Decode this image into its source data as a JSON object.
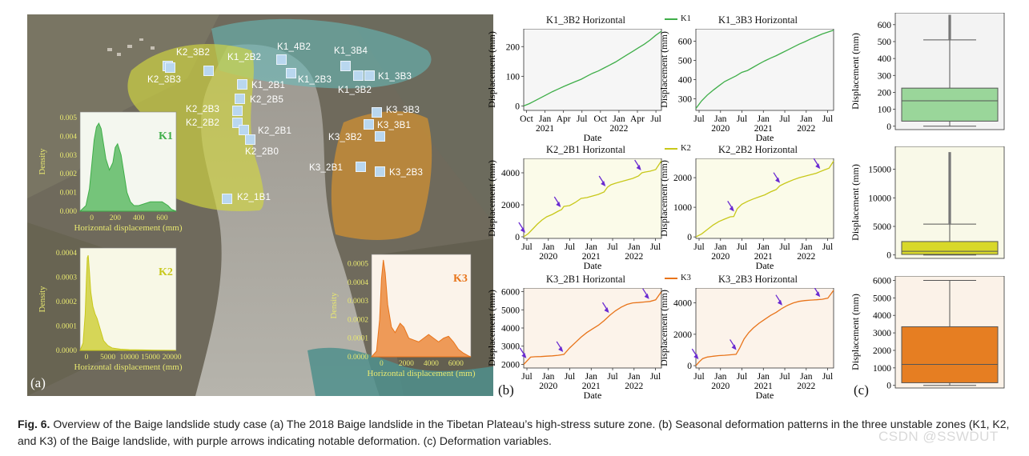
{
  "caption": {
    "label": "Fig. 6.",
    "text": " Overview of the Baige landslide study case (a) The 2018 Baige landslide in the Tibetan Plateau’s high-stress suture zone. (b) Seasonal deformation patterns in the three unstable zones (K1, K2, and K3) of the Baige landslide, with purple arrows indicating notable deformation. (c) Deformation variables."
  },
  "watermark": "CSDN @SSWDUT",
  "panel_tags": {
    "a": "(a)",
    "b": "(b)",
    "c": "(c)"
  },
  "colors": {
    "K1": "#3fae49",
    "K2": "#c8c81a",
    "K3": "#e8741a",
    "arrow": "#6a2bd1",
    "K1_zone": "#c9d542",
    "K2_zone": "#c9d542",
    "K3_zone": "#e0932a",
    "K1top_zone": "#66c0c0"
  },
  "map": {
    "zone_labels": {
      "K1": "K1",
      "K2": "K2",
      "K3": "K3"
    },
    "sites": [
      "K2_3B2",
      "K2_3B3",
      "K1_2B2",
      "K1_4B2",
      "K1_3B4",
      "K1_2B1",
      "K1_2B3",
      "K1_3B3",
      "K1_3B2",
      "K2_2B5",
      "K2_2B3",
      "K2_2B2",
      "K2_2B1",
      "K2_2B0",
      "K2_1B1",
      "K3_3B3",
      "K3_3B1",
      "K3_3B2",
      "K3_2B1",
      "K3_2B3"
    ]
  },
  "chart_data": [
    {
      "type": "area",
      "id": "density_K1",
      "ylabel": "Density",
      "xlabel": "Horizontal displacement (mm)",
      "xticks": [
        "0",
        "200",
        "400",
        "600"
      ],
      "yticks": [
        "0.000",
        "0.001",
        "0.002",
        "0.003",
        "0.004",
        "0.005"
      ],
      "xlim": [
        -100,
        720
      ],
      "ylim": [
        0,
        0.0053
      ],
      "x": [
        -100,
        -50,
        -20,
        0,
        20,
        40,
        60,
        80,
        100,
        120,
        150,
        180,
        200,
        220,
        250,
        280,
        300,
        330,
        360,
        400,
        450,
        500,
        550,
        600,
        650,
        680,
        720
      ],
      "y": [
        0,
        0.0003,
        0.0012,
        0.0025,
        0.0038,
        0.0045,
        0.0047,
        0.0044,
        0.0036,
        0.0028,
        0.0022,
        0.0026,
        0.0034,
        0.0036,
        0.003,
        0.0018,
        0.001,
        0.0005,
        0.0003,
        0.0003,
        0.0004,
        0.0005,
        0.0005,
        0.0005,
        0.0003,
        0.0001,
        0
      ]
    },
    {
      "type": "area",
      "id": "density_K2",
      "ylabel": "Density",
      "xlabel": "Horizontal displacement (mm)",
      "xticks": [
        "0",
        "5000",
        "10000",
        "15000",
        "20000"
      ],
      "yticks": [
        "0.0000",
        "0.0001",
        "0.0002",
        "0.0003",
        "0.0004"
      ],
      "xlim": [
        -1500,
        21000
      ],
      "ylim": [
        0,
        0.00042
      ],
      "x": [
        -1500,
        -800,
        -300,
        0,
        200,
        400,
        700,
        1000,
        1500,
        2000,
        2500,
        3000,
        3500,
        4000,
        5000,
        6000,
        8000,
        10000,
        13000,
        16000,
        19000,
        21000
      ],
      "y": [
        0,
        3e-05,
        0.00015,
        0.0003,
        0.00038,
        0.00039,
        0.00032,
        0.00024,
        0.00018,
        0.00015,
        0.00013,
        0.0001,
        7e-05,
        4e-05,
        2e-05,
        1e-05,
        5e-06,
        3e-06,
        2e-06,
        1e-06,
        5e-07,
        0
      ]
    },
    {
      "type": "area",
      "id": "density_K3",
      "ylabel": "Density",
      "xlabel": "Horizontal displacement (mm)",
      "xticks": [
        "0",
        "2000",
        "4000",
        "6000"
      ],
      "yticks": [
        "0.0000",
        "0.0001",
        "0.0002",
        "0.0003",
        "0.0004",
        "0.0005"
      ],
      "xlim": [
        -800,
        7200
      ],
      "ylim": [
        0,
        0.00055
      ],
      "x": [
        -800,
        -400,
        -150,
        0,
        150,
        300,
        500,
        800,
        1100,
        1500,
        1800,
        2200,
        2600,
        3000,
        3400,
        3800,
        4200,
        4600,
        5000,
        5400,
        5800,
        6200,
        6600,
        7000,
        7200
      ],
      "y": [
        0,
        3e-05,
        0.0002,
        0.00042,
        0.00052,
        0.00045,
        0.00028,
        0.00016,
        0.00013,
        0.00018,
        0.00016,
        0.0001,
        9e-05,
        8e-05,
        0.0001,
        0.00012,
        0.0001,
        8e-05,
        0.0001,
        0.00011,
        8e-05,
        4e-05,
        2e-05,
        5e-06,
        0
      ]
    },
    {
      "type": "line",
      "id": "K1_3B2",
      "title": "K1_3B2 Horizontal",
      "ylabel": "Displacement (mm)",
      "xlabel": "Date",
      "legend": "K1",
      "xtick_labels": [
        [
          "Oct",
          "2021"
        ],
        [
          "Jan",
          ""
        ],
        [
          "Apr",
          ""
        ],
        [
          "Jul",
          ""
        ],
        [
          "Oct",
          "2022"
        ],
        [
          "Jan",
          ""
        ],
        [
          "Apr",
          ""
        ],
        [
          "Jul",
          ""
        ]
      ],
      "xtick_top": [
        "Oct",
        "Jan",
        "Apr",
        "Jul",
        "Oct",
        "Jan",
        "Apr",
        "Jul"
      ],
      "xtick_bottom": [
        "",
        "2021",
        "",
        "",
        "",
        "2022",
        "",
        ""
      ],
      "yticks": [
        "0",
        "100",
        "200"
      ],
      "xlim": [
        0,
        12
      ],
      "ylim": [
        -15,
        260
      ],
      "x": [
        0,
        0.5,
        1,
        1.5,
        2,
        2.5,
        3,
        3.5,
        4,
        4.5,
        5,
        5.5,
        6,
        6.5,
        7,
        7.5,
        8,
        8.5,
        9,
        9.5,
        10,
        10.5,
        11,
        11.5,
        12
      ],
      "y": [
        0,
        8,
        18,
        28,
        38,
        48,
        57,
        66,
        74,
        82,
        90,
        100,
        110,
        118,
        128,
        138,
        148,
        160,
        172,
        184,
        196,
        208,
        222,
        238,
        252
      ],
      "arrows_at": []
    },
    {
      "type": "line",
      "id": "K1_3B3",
      "title": "K1_3B3 Horizontal",
      "ylabel": "Displacement (mm)",
      "xlabel": "Date",
      "legend": "K1",
      "xtick_top": [
        "Jul",
        "Jan",
        "Jul",
        "Jan",
        "Jul",
        "Jan",
        "Jul"
      ],
      "xtick_bottom": [
        "",
        "2020",
        "",
        "2021",
        "",
        "2022",
        ""
      ],
      "yticks": [
        "300",
        "400",
        "500",
        "600"
      ],
      "xlim": [
        0,
        12
      ],
      "ylim": [
        240,
        665
      ],
      "x": [
        0,
        0.5,
        1,
        1.5,
        2,
        2.5,
        3,
        3.5,
        4,
        4.5,
        5,
        5.5,
        6,
        6.5,
        7,
        7.5,
        8,
        8.5,
        9,
        9.5,
        10,
        10.5,
        11,
        11.5,
        12
      ],
      "y": [
        250,
        290,
        320,
        345,
        368,
        390,
        405,
        420,
        438,
        448,
        465,
        482,
        498,
        512,
        525,
        540,
        555,
        570,
        585,
        598,
        612,
        625,
        638,
        648,
        658
      ],
      "arrows_at": []
    },
    {
      "type": "line",
      "id": "K2_2B1",
      "title": "K2_2B1 Horizontal",
      "ylabel": "Displacement (mm)",
      "xlabel": "Date",
      "legend": "K2",
      "xtick_top": [
        "Jul",
        "Jan",
        "Jul",
        "Jan",
        "Jul",
        "Jan",
        "Jul"
      ],
      "xtick_bottom": [
        "",
        "2020",
        "",
        "2021",
        "",
        "2022",
        ""
      ],
      "yticks": [
        "0",
        "2000",
        "4000"
      ],
      "xlim": [
        0,
        12
      ],
      "ylim": [
        -100,
        4900
      ],
      "x": [
        0,
        0.4,
        0.8,
        1.2,
        1.6,
        2,
        2.5,
        3,
        3.3,
        3.5,
        4,
        4.5,
        5,
        5.5,
        6,
        6.5,
        7,
        7.3,
        7.6,
        8,
        8.5,
        9,
        9.5,
        10,
        10.3,
        10.6,
        11,
        11.5,
        12
      ],
      "y": [
        0,
        200,
        500,
        800,
        1050,
        1250,
        1400,
        1600,
        1700,
        1900,
        1950,
        2150,
        2400,
        2450,
        2550,
        2650,
        2800,
        3100,
        3250,
        3350,
        3450,
        3550,
        3650,
        3800,
        4000,
        4050,
        4100,
        4200,
        4750
      ],
      "arrows_at": [
        0.2,
        3.3,
        7.2,
        10.3
      ]
    },
    {
      "type": "line",
      "id": "K2_2B2",
      "title": "K2_2B2 Horizontal",
      "ylabel": "Displacement (mm)",
      "xlabel": "Date",
      "legend": "K2",
      "xtick_top": [
        "Jul",
        "Jan",
        "Jul",
        "Jan",
        "Jul",
        "Jan",
        "Jul"
      ],
      "xtick_bottom": [
        "",
        "2020",
        "",
        "2021",
        "",
        "2022",
        ""
      ],
      "yticks": [
        "0",
        "1000",
        "2000"
      ],
      "xlim": [
        0,
        12
      ],
      "ylim": [
        -50,
        2650
      ],
      "x": [
        0,
        0.5,
        1,
        1.5,
        2,
        2.5,
        3,
        3.3,
        3.6,
        4,
        4.5,
        5,
        5.5,
        6,
        6.5,
        7,
        7.3,
        7.7,
        8,
        8.5,
        9,
        9.5,
        10,
        10.5,
        10.8,
        11.2,
        11.6,
        12
      ],
      "y": [
        0,
        100,
        250,
        400,
        520,
        600,
        680,
        690,
        950,
        1100,
        1200,
        1280,
        1350,
        1420,
        1520,
        1600,
        1720,
        1800,
        1850,
        1930,
        2000,
        2050,
        2100,
        2150,
        2200,
        2260,
        2320,
        2560
      ],
      "arrows_at": [
        3.4,
        7.4,
        10.9
      ]
    },
    {
      "type": "line",
      "id": "K3_2B1",
      "title": "K3_2B1 Horizontal",
      "ylabel": "Displacement (mm)",
      "xlabel": "Date",
      "legend": "K3",
      "xtick_top": [
        "Jul",
        "Jan",
        "Jul",
        "Jan",
        "Jul",
        "Jan",
        "Jul"
      ],
      "xtick_bottom": [
        "",
        "2020",
        "",
        "2021",
        "",
        "2022",
        ""
      ],
      "yticks": [
        "2000",
        "3000",
        "4000",
        "5000",
        "6000"
      ],
      "xlim": [
        0,
        12
      ],
      "ylim": [
        1800,
        6200
      ],
      "x": [
        0,
        0.3,
        0.6,
        1,
        1.5,
        2,
        2.5,
        3,
        3.5,
        4,
        4.5,
        5,
        5.5,
        6,
        6.5,
        7,
        7.5,
        8,
        8.5,
        9,
        9.5,
        10,
        10.5,
        11,
        11.5,
        12
      ],
      "y": [
        2000,
        2200,
        2400,
        2420,
        2430,
        2450,
        2470,
        2500,
        2550,
        2900,
        3200,
        3500,
        3750,
        3950,
        4150,
        4400,
        4700,
        4950,
        5150,
        5300,
        5380,
        5400,
        5430,
        5460,
        5550,
        6000
      ],
      "arrows_at": [
        0.3,
        3.5,
        7.5,
        11.0
      ]
    },
    {
      "type": "line",
      "id": "K3_2B3",
      "title": "K3_2B3 Horizontal",
      "ylabel": "Displacement (mm)",
      "xlabel": "Date",
      "legend": "K3",
      "xtick_top": [
        "Jul",
        "Jan",
        "Jul",
        "Jan",
        "Jul",
        "Jan",
        "Jul"
      ],
      "xtick_bottom": [
        "",
        "2020",
        "",
        "2021",
        "",
        "2022",
        ""
      ],
      "yticks": [
        "0",
        "2000",
        "4000"
      ],
      "xlim": [
        0,
        12
      ],
      "ylim": [
        -150,
        4950
      ],
      "x": [
        0,
        0.3,
        0.6,
        1,
        1.5,
        2,
        2.5,
        3,
        3.5,
        3.8,
        4.2,
        4.6,
        5,
        5.5,
        6,
        6.5,
        7,
        7.5,
        8,
        8.5,
        9,
        9.5,
        10,
        10.5,
        11,
        11.5,
        12
      ],
      "y": [
        0,
        250,
        450,
        550,
        600,
        640,
        660,
        690,
        720,
        1100,
        1700,
        2100,
        2400,
        2700,
        2950,
        3200,
        3400,
        3650,
        3850,
        4000,
        4100,
        4150,
        4180,
        4200,
        4230,
        4300,
        4800
      ],
      "arrows_at": [
        0.3,
        3.6,
        7.6,
        10.9
      ]
    },
    {
      "type": "box",
      "id": "box_K1",
      "ylabel": "Displacement (mm)",
      "yticks": [
        "0",
        "100",
        "200",
        "300",
        "400",
        "500",
        "600"
      ],
      "ylim": [
        -20,
        670
      ],
      "min": 0,
      "q1": 30,
      "median": 150,
      "q3": 225,
      "whisker_high": 510,
      "outlier_max": 658
    },
    {
      "type": "box",
      "id": "box_K2",
      "ylabel": "Displacement (mm)",
      "yticks": [
        "0",
        "5000",
        "10000",
        "15000"
      ],
      "ylim": [
        -600,
        19000
      ],
      "min": 0,
      "q1": 100,
      "median": 650,
      "q3": 2350,
      "whisker_high": 5400,
      "outlier_max": 18000
    },
    {
      "type": "box",
      "id": "box_K3",
      "ylabel": "Displacement (mm)",
      "yticks": [
        "0",
        "1000",
        "2000",
        "3000",
        "4000",
        "5000",
        "6000"
      ],
      "ylim": [
        -150,
        6250
      ],
      "min": 0,
      "q1": 150,
      "median": 1200,
      "q3": 3350,
      "whisker_high": 6000,
      "outlier_max": 6000
    }
  ]
}
